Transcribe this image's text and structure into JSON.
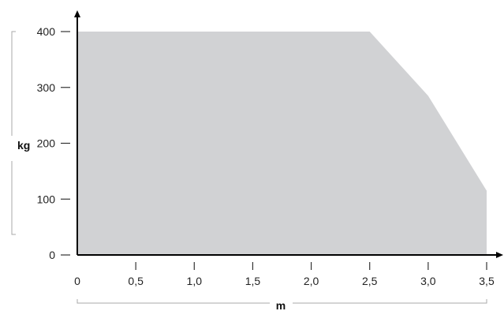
{
  "chart_data": {
    "type": "area",
    "title": "",
    "xlabel": "m",
    "ylabel": "kg",
    "x": [
      0,
      2.5,
      3.0,
      3.5
    ],
    "series": [
      {
        "values": [
          400,
          400,
          285,
          115
        ]
      }
    ],
    "xlim": [
      0,
      3.5
    ],
    "ylim": [
      0,
      400
    ],
    "x_ticks": [
      0,
      0.5,
      1.0,
      1.5,
      2.0,
      2.5,
      3.0,
      3.5
    ],
    "x_tick_labels": [
      "0",
      "0,5",
      "1,0",
      "1,5",
      "2,0",
      "2,5",
      "3,0",
      "3,5"
    ],
    "y_ticks": [
      0,
      100,
      200,
      300,
      400
    ],
    "y_tick_labels": [
      "0",
      "100",
      "200",
      "300",
      "400"
    ],
    "grid": false,
    "legend": "none",
    "colors": {
      "fill": "#d1d2d4",
      "axis": "#000000",
      "bracket": "#a8a8a8",
      "text": "#222222"
    }
  }
}
